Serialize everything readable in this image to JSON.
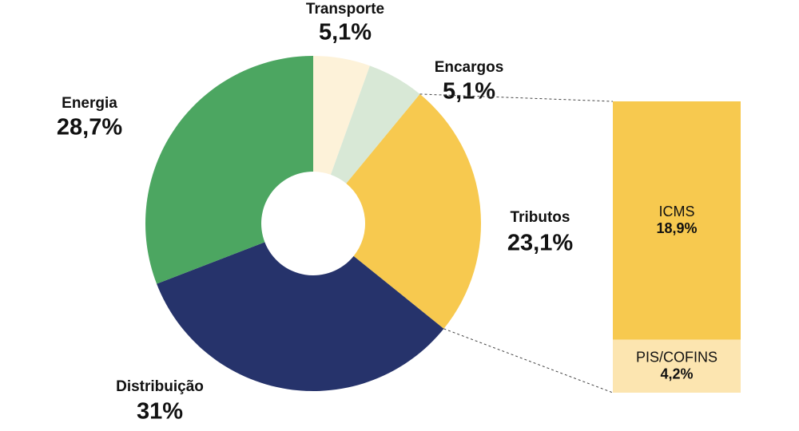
{
  "chart_data": {
    "type": "pie-of-bar",
    "slices": [
      {
        "name": "Transporte",
        "value": 5.1,
        "value_label": "5,1%",
        "color": "#fdf2d9"
      },
      {
        "name": "Encargos",
        "value": 5.1,
        "value_label": "5,1%",
        "color": "#d8e8d6"
      },
      {
        "name": "Tributos",
        "value": 23.1,
        "value_label": "23,1%",
        "color": "#f7c94f",
        "breakdown": [
          {
            "name": "ICMS",
            "value": 18.9,
            "value_label": "18,9%",
            "color": "#f7c94f"
          },
          {
            "name": "PIS/COFINS",
            "value": 4.2,
            "value_label": "4,2%",
            "color": "#fce5b0"
          }
        ]
      },
      {
        "name": "Distribuição",
        "value": 31,
        "value_label": "31%",
        "color": "#26336b"
      },
      {
        "name": "Energia",
        "value": 28.7,
        "value_label": "28,7%",
        "color": "#4ca661"
      }
    ]
  }
}
